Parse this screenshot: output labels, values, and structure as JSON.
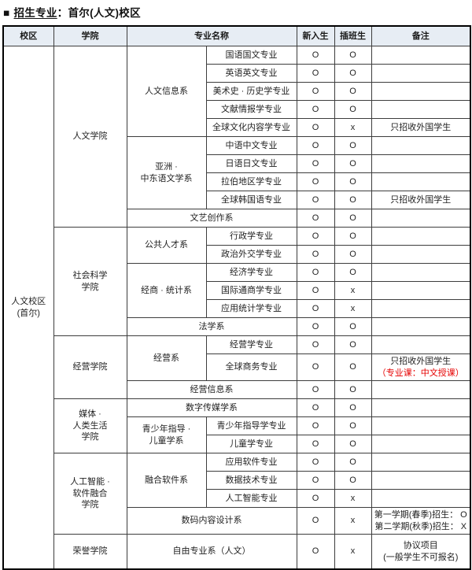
{
  "title": {
    "bullet": "■",
    "main": "招生专业",
    "suffix": "：首尔(人文)校区"
  },
  "colors": {
    "accent_red": "#e60000",
    "header_bg": "#e7edf4",
    "outer_border": "#000000"
  },
  "table": {
    "headers": {
      "campus": "校区",
      "college": "学院",
      "major_name": "专业名称",
      "new_student": "新入生",
      "transfer_student": "插班生",
      "remark": "备注"
    },
    "rows": [
      {
        "cells": [
          {
            "name": "campus",
            "lines": [
              "人文校区",
              "(首尔)"
            ],
            "rowspan": 27
          },
          {
            "name": "college",
            "text": "人文学院",
            "rowspan": 10
          },
          {
            "name": "dept",
            "text": "人文信息系",
            "rowspan": 5
          },
          {
            "name": "major",
            "text": "国语国文专业"
          },
          {
            "name": "new",
            "text": "O"
          },
          {
            "name": "transfer",
            "text": "O"
          },
          {
            "name": "remark",
            "text": ""
          }
        ]
      },
      {
        "cells": [
          {
            "name": "major",
            "text": "英语英文专业"
          },
          {
            "name": "new",
            "text": "O"
          },
          {
            "name": "transfer",
            "text": "O"
          },
          {
            "name": "remark",
            "text": ""
          }
        ]
      },
      {
        "cells": [
          {
            "name": "major",
            "text": "美术史 · 历史学专业"
          },
          {
            "name": "new",
            "text": "O"
          },
          {
            "name": "transfer",
            "text": "O"
          },
          {
            "name": "remark",
            "text": ""
          }
        ]
      },
      {
        "cells": [
          {
            "name": "major",
            "text": "文献情报学专业"
          },
          {
            "name": "new",
            "text": "O"
          },
          {
            "name": "transfer",
            "text": "O"
          },
          {
            "name": "remark",
            "text": ""
          }
        ]
      },
      {
        "cells": [
          {
            "name": "major",
            "text": "全球文化内容学专业"
          },
          {
            "name": "new",
            "text": "O"
          },
          {
            "name": "transfer",
            "text": "x"
          },
          {
            "name": "remark",
            "text": "只招收外国学生"
          }
        ]
      },
      {
        "cells": [
          {
            "name": "dept",
            "lines": [
              "亚洲 ·",
              "中东语文学系"
            ],
            "rowspan": 4
          },
          {
            "name": "major",
            "text": "中语中文专业"
          },
          {
            "name": "new",
            "text": "O"
          },
          {
            "name": "transfer",
            "text": "O"
          },
          {
            "name": "remark",
            "text": ""
          }
        ]
      },
      {
        "cells": [
          {
            "name": "major",
            "text": "日语日文专业"
          },
          {
            "name": "new",
            "text": "O"
          },
          {
            "name": "transfer",
            "text": "O"
          },
          {
            "name": "remark",
            "text": ""
          }
        ]
      },
      {
        "cells": [
          {
            "name": "major",
            "text": "拉伯地区学专业"
          },
          {
            "name": "new",
            "text": "O"
          },
          {
            "name": "transfer",
            "text": "O"
          },
          {
            "name": "remark",
            "text": ""
          }
        ]
      },
      {
        "cells": [
          {
            "name": "major",
            "text": "全球韩国语专业"
          },
          {
            "name": "new",
            "text": "O"
          },
          {
            "name": "transfer",
            "text": "O"
          },
          {
            "name": "remark",
            "text": "只招收外国学生"
          }
        ]
      },
      {
        "cells": [
          {
            "name": "dept-major",
            "text": "文艺创作系",
            "colspan": 2
          },
          {
            "name": "new",
            "text": "O"
          },
          {
            "name": "transfer",
            "text": "O"
          },
          {
            "name": "remark",
            "text": ""
          }
        ]
      },
      {
        "cells": [
          {
            "name": "college",
            "lines": [
              "社会科学",
              "学院"
            ],
            "rowspan": 6
          },
          {
            "name": "dept",
            "text": "公共人才系",
            "rowspan": 2
          },
          {
            "name": "major",
            "text": "行政学专业"
          },
          {
            "name": "new",
            "text": "O"
          },
          {
            "name": "transfer",
            "text": "O"
          },
          {
            "name": "remark",
            "text": ""
          }
        ]
      },
      {
        "cells": [
          {
            "name": "major",
            "text": "政治外交学专业"
          },
          {
            "name": "new",
            "text": "O"
          },
          {
            "name": "transfer",
            "text": "O"
          },
          {
            "name": "remark",
            "text": ""
          }
        ]
      },
      {
        "cells": [
          {
            "name": "dept",
            "text": "经商 · 统计系",
            "rowspan": 3
          },
          {
            "name": "major",
            "text": "经济学专业"
          },
          {
            "name": "new",
            "text": "O"
          },
          {
            "name": "transfer",
            "text": "O"
          },
          {
            "name": "remark",
            "text": ""
          }
        ]
      },
      {
        "cells": [
          {
            "name": "major",
            "text": "国际通商学专业"
          },
          {
            "name": "new",
            "text": "O"
          },
          {
            "name": "transfer",
            "text": "x"
          },
          {
            "name": "remark",
            "text": ""
          }
        ]
      },
      {
        "cells": [
          {
            "name": "major",
            "text": "应用统计学专业"
          },
          {
            "name": "new",
            "text": "O"
          },
          {
            "name": "transfer",
            "text": "x"
          },
          {
            "name": "remark",
            "text": ""
          }
        ]
      },
      {
        "cells": [
          {
            "name": "dept-major",
            "text": "法学系",
            "colspan": 2
          },
          {
            "name": "new",
            "text": "O"
          },
          {
            "name": "transfer",
            "text": "O"
          },
          {
            "name": "remark",
            "text": ""
          }
        ]
      },
      {
        "cells": [
          {
            "name": "college",
            "text": "经营学院",
            "rowspan": 3
          },
          {
            "name": "dept",
            "text": "经营系",
            "rowspan": 2
          },
          {
            "name": "major",
            "text": "经营学专业"
          },
          {
            "name": "new",
            "text": "O"
          },
          {
            "name": "transfer",
            "text": "O"
          },
          {
            "name": "remark",
            "text": ""
          }
        ]
      },
      {
        "h": "tall",
        "cells": [
          {
            "name": "major",
            "text": "全球商务专业"
          },
          {
            "name": "new",
            "text": "O"
          },
          {
            "name": "transfer",
            "text": "O"
          },
          {
            "name": "remark",
            "lines": [
              "只招收外国学生",
              {
                "t": "（专业课：中文授课）",
                "red": true
              }
            ]
          }
        ]
      },
      {
        "cells": [
          {
            "name": "dept-major",
            "text": "经营信息系",
            "colspan": 2
          },
          {
            "name": "new",
            "text": "O"
          },
          {
            "name": "transfer",
            "text": "O"
          },
          {
            "name": "remark",
            "text": ""
          }
        ]
      },
      {
        "cells": [
          {
            "name": "college",
            "lines": [
              "媒体 ·",
              "人类生活",
              "学院"
            ],
            "rowspan": 3
          },
          {
            "name": "dept-major",
            "text": "数字传媒学系",
            "colspan": 2
          },
          {
            "name": "new",
            "text": "O"
          },
          {
            "name": "transfer",
            "text": "O"
          },
          {
            "name": "remark",
            "text": ""
          }
        ]
      },
      {
        "cells": [
          {
            "name": "dept",
            "lines": [
              "青少年指导 ·",
              "儿童学系"
            ],
            "rowspan": 2
          },
          {
            "name": "major",
            "text": "青少年指导学专业"
          },
          {
            "name": "new",
            "text": "O"
          },
          {
            "name": "transfer",
            "text": "O"
          },
          {
            "name": "remark",
            "text": ""
          }
        ]
      },
      {
        "cells": [
          {
            "name": "major",
            "text": "儿童学专业"
          },
          {
            "name": "new",
            "text": "O"
          },
          {
            "name": "transfer",
            "text": "O"
          },
          {
            "name": "remark",
            "text": ""
          }
        ]
      },
      {
        "cells": [
          {
            "name": "college",
            "lines": [
              "人工智能 ·",
              "软件融合",
              "学院"
            ],
            "rowspan": 4
          },
          {
            "name": "dept",
            "text": "融合软件系",
            "rowspan": 3
          },
          {
            "name": "major",
            "text": "应用软件专业"
          },
          {
            "name": "new",
            "text": "O"
          },
          {
            "name": "transfer",
            "text": "O"
          },
          {
            "name": "remark",
            "text": ""
          }
        ]
      },
      {
        "cells": [
          {
            "name": "major",
            "text": "数据技术专业"
          },
          {
            "name": "new",
            "text": "O"
          },
          {
            "name": "transfer",
            "text": "O"
          },
          {
            "name": "remark",
            "text": ""
          }
        ]
      },
      {
        "cells": [
          {
            "name": "major",
            "text": "人工智能专业"
          },
          {
            "name": "new",
            "text": "O"
          },
          {
            "name": "transfer",
            "text": "x"
          },
          {
            "name": "remark",
            "text": ""
          }
        ]
      },
      {
        "h": "tall",
        "cells": [
          {
            "name": "dept-major",
            "text": "数码内容设计系",
            "colspan": 2
          },
          {
            "name": "new",
            "text": "O"
          },
          {
            "name": "transfer",
            "text": "x"
          },
          {
            "name": "remark",
            "lines": [
              "第一学期(春季)招生： O",
              "第二学期(秋季)招生： X"
            ]
          }
        ]
      },
      {
        "h": "taller",
        "cells": [
          {
            "name": "college",
            "text": "荣誉学院"
          },
          {
            "name": "dept-major",
            "text": "自由专业系（人文）",
            "colspan": 2
          },
          {
            "name": "new",
            "text": "O"
          },
          {
            "name": "transfer",
            "text": "x"
          },
          {
            "name": "remark",
            "lines": [
              "协议项目",
              "(一般学生不可报名)"
            ]
          }
        ]
      }
    ]
  }
}
